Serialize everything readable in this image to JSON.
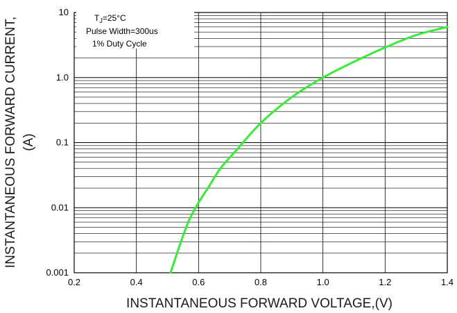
{
  "chart_data": {
    "type": "line",
    "title": "",
    "xlabel": "INSTANTANEOUS FORWARD VOLTAGE,(V)",
    "ylabel_line1": "INSTANTANEOUS FORWARD CURRENT,",
    "ylabel_line2": "(A)",
    "x_scale": "linear",
    "y_scale": "log",
    "xlim": [
      0.2,
      1.4
    ],
    "ylim": [
      0.001,
      10
    ],
    "x_ticks": [
      0.2,
      0.4,
      0.6,
      0.8,
      1.0,
      1.2,
      1.4
    ],
    "x_tick_labels": [
      "0.2",
      "0.4",
      "0.6",
      "0.8",
      "1.0",
      "1.2",
      "1.4"
    ],
    "y_ticks": [
      0.001,
      0.01,
      0.1,
      1,
      10
    ],
    "y_tick_labels": [
      "0.001",
      "0.01",
      "0.1",
      "1.0",
      "10"
    ],
    "grid": true,
    "legend_position": "top-left",
    "conditions": {
      "tj_prefix": "T",
      "tj_sub": "J",
      "tj_suffix": "=25°C",
      "pulse_width": "Pulse Width=300us",
      "duty_cycle": "1% Duty Cycle"
    },
    "series": [
      {
        "color": "#33ee33",
        "x": [
          0.51,
          0.54,
          0.57,
          0.6,
          0.63,
          0.67,
          0.72,
          0.8,
          0.9,
          1.0,
          1.1,
          1.2,
          1.3,
          1.4
        ],
        "y": [
          0.001,
          0.0027,
          0.0065,
          0.012,
          0.02,
          0.04,
          0.075,
          0.2,
          0.5,
          1.0,
          1.75,
          2.9,
          4.5,
          6.0
        ]
      }
    ]
  }
}
